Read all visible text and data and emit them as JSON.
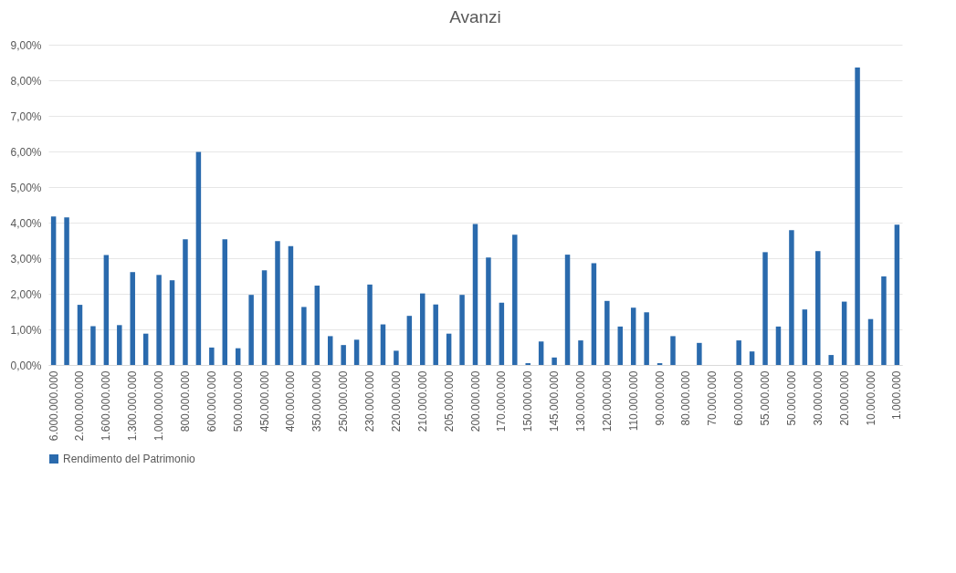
{
  "chart_data": {
    "type": "bar",
    "title": "Avanzi",
    "categories": [
      "6.000.000.000",
      null,
      "2.000.000.000",
      null,
      "1.600.000.000",
      null,
      "1.300.000.000",
      null,
      "1.000.000.000",
      null,
      "800.000.000",
      null,
      "600.000.000",
      null,
      "500.000.000",
      null,
      "450.000.000",
      null,
      "400.000.000",
      null,
      "350.000.000",
      null,
      "250.000.000",
      null,
      "230.000.000",
      null,
      "220.000.000",
      null,
      "210.000.000",
      null,
      "205.000.000",
      null,
      "200.000.000",
      null,
      "170.000.000",
      null,
      "150.000.000",
      null,
      "145.000.000",
      null,
      "130.000.000",
      null,
      "120.000.000",
      null,
      "110.000.000",
      null,
      "90.000.000",
      null,
      "80.000.000",
      null,
      "70.000.000",
      null,
      "60.000.000",
      null,
      "55.000.000",
      null,
      "50.000.000",
      null,
      "30.000.000",
      null,
      "20.000.000",
      null,
      "10.000.000",
      null,
      "1.000.000"
    ],
    "series": [
      {
        "name": "Rendimento del Patrimonio",
        "color": "#2a6aad",
        "values": [
          4.17,
          4.15,
          1.69,
          1.09,
          3.09,
          1.12,
          2.61,
          0.88,
          2.53,
          2.38,
          3.53,
          5.99,
          0.49,
          3.53,
          0.47,
          1.97,
          2.66,
          3.48,
          3.34,
          1.63,
          2.23,
          0.81,
          0.56,
          0.71,
          2.26,
          1.14,
          0.4,
          1.38,
          2.01,
          1.7,
          0.88,
          1.97,
          3.96,
          3.02,
          1.75,
          3.66,
          0.05,
          0.66,
          0.21,
          3.1,
          0.69,
          2.86,
          1.8,
          1.08,
          1.61,
          1.48,
          0.05,
          0.81,
          0,
          0.62,
          0,
          0,
          0.69,
          0.38,
          3.17,
          1.08,
          3.79,
          1.56,
          3.2,
          0.28,
          1.78,
          8.36,
          1.29,
          2.49,
          3.94
        ]
      }
    ],
    "ylim": [
      0,
      9
    ],
    "yticks": [
      {
        "value": 0,
        "label": "0,00%"
      },
      {
        "value": 1,
        "label": "1,00%"
      },
      {
        "value": 2,
        "label": "2,00%"
      },
      {
        "value": 3,
        "label": "3,00%"
      },
      {
        "value": 4,
        "label": "4,00%"
      },
      {
        "value": 5,
        "label": "5,00%"
      },
      {
        "value": 6,
        "label": "6,00%"
      },
      {
        "value": 7,
        "label": "7,00%"
      },
      {
        "value": 8,
        "label": "8,00%"
      },
      {
        "value": 9,
        "label": "9,00%"
      }
    ],
    "grid": "y",
    "legend": "bottom"
  }
}
